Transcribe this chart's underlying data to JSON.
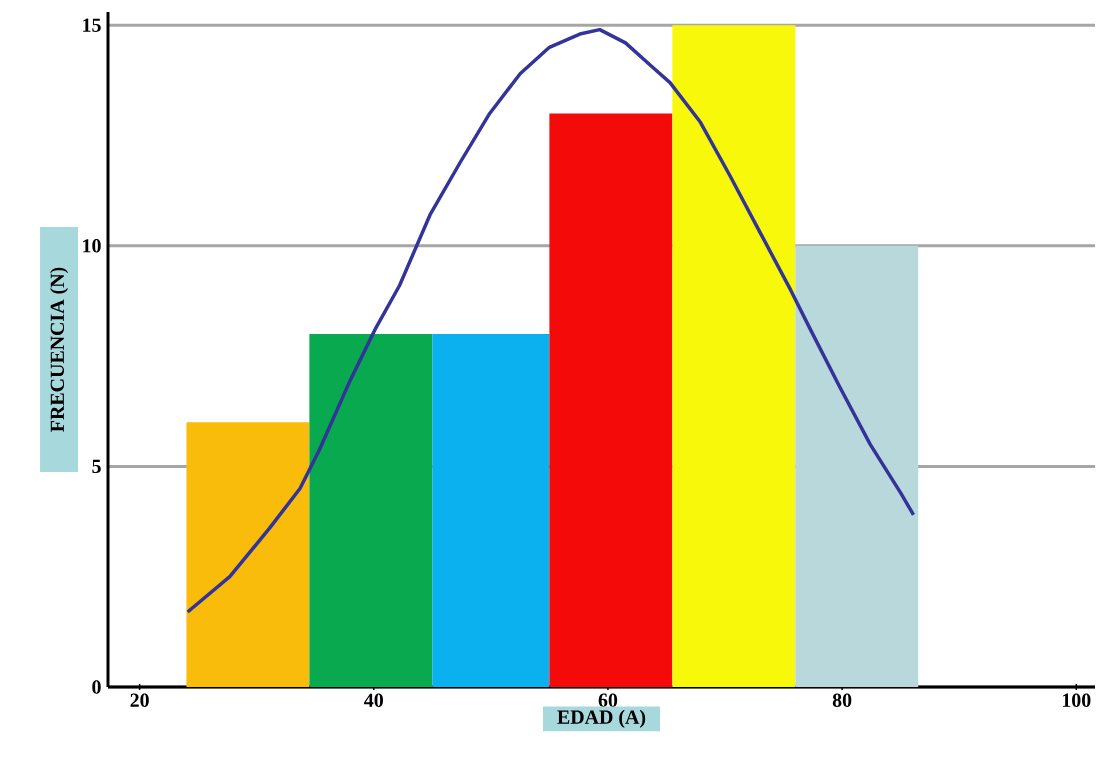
{
  "chart_data": {
    "type": "histogram",
    "xlabel": "EDAD (A)",
    "ylabel": "FRECUENCIA (N)",
    "bins": [
      24,
      34.5,
      45,
      55,
      65.5,
      76,
      86.5
    ],
    "values": [
      6,
      8,
      8,
      13,
      15,
      10
    ],
    "colors": [
      "#f9bc0a",
      "#09a950",
      "#0bb0ee",
      "#f50a0a",
      "#f8f80a",
      "#b8d8dc"
    ],
    "series": [
      {
        "type": "line",
        "color": "#333399",
        "x": [
          24.1,
          27.7,
          31.1,
          33.7,
          35.4,
          37.9,
          40.1,
          42.2,
          44.8,
          47.4,
          49.9,
          52.5,
          55.0,
          57.6,
          59.3,
          61.5,
          63.6,
          65.3,
          67.9,
          70.4,
          73.0,
          75.6,
          77.3,
          79.8,
          82.4,
          85.0,
          86.1
        ],
        "values": [
          1.7,
          2.5,
          3.6,
          4.5,
          5.4,
          6.9,
          8.1,
          9.1,
          10.7,
          11.9,
          13.0,
          13.9,
          14.5,
          14.8,
          14.9,
          14.6,
          14.1,
          13.7,
          12.8,
          11.6,
          10.3,
          9.0,
          8.1,
          6.8,
          5.5,
          4.4,
          3.9
        ]
      }
    ],
    "xlim": [
      17.3,
      101.6
    ],
    "ylim": [
      0,
      15.3
    ],
    "xticks": [
      20,
      40,
      60,
      80,
      100
    ],
    "yticks": [
      0,
      5,
      10,
      15
    ],
    "grid": "y"
  }
}
